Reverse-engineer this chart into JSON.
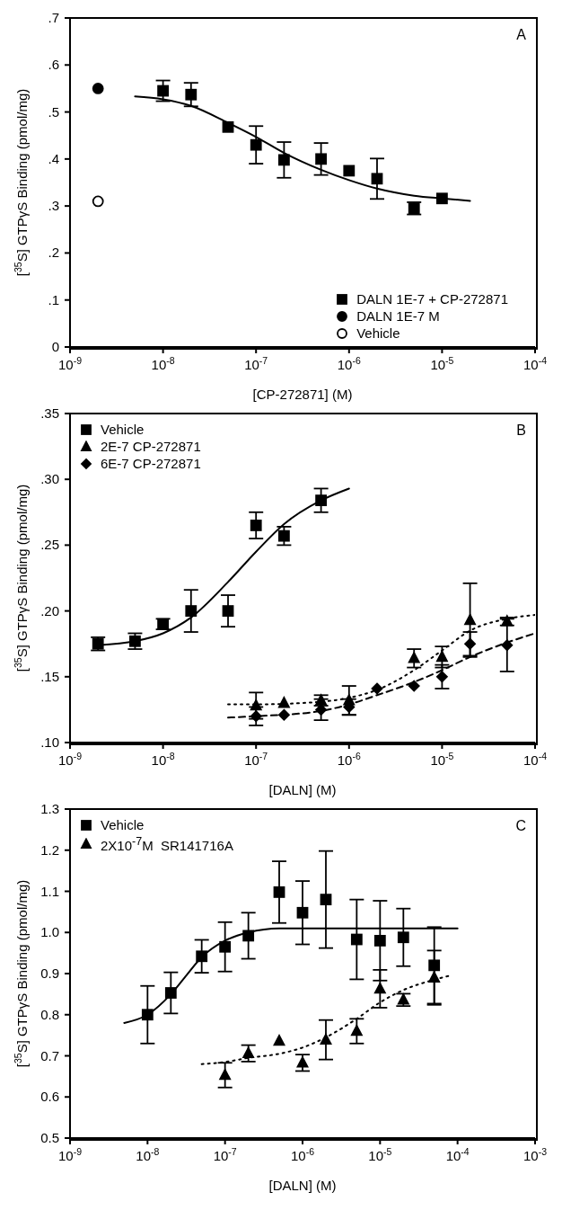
{
  "chart_data": [
    {
      "type": "scatter",
      "xlabel": "[CP-272871] (M)",
      "ylabel": "[$^{35}$S] GTPγS Binding (pmol/mg)",
      "log": "x",
      "legend": "bottom right",
      "annotations": [
        "A"
      ],
      "xlim": [
        1e-09,
        0.0001
      ],
      "xticks": [
        {
          "value": 1e-09,
          "label": "10$^{-9}$"
        },
        {
          "value": 1e-08,
          "label": "10$^{-8}$"
        },
        {
          "value": 1e-07,
          "label": "10$^{-7}$"
        },
        {
          "value": 1e-06,
          "label": "10$^{-6}$"
        },
        {
          "value": 1e-05,
          "label": "10$^{-5}$"
        },
        {
          "value": 0.0001,
          "label": "10$^{-4}$"
        }
      ],
      "ylim": [
        0,
        0.7
      ],
      "yticks": [
        0,
        {
          "value": 0.1,
          "label": ".1"
        },
        {
          "value": 0.2,
          "label": ".2"
        },
        {
          "value": 0.3,
          "label": ".3"
        },
        {
          "value": 0.4,
          "label": ".4"
        },
        {
          "value": 0.5,
          "label": ".5"
        },
        {
          "value": 0.6,
          "label": ".6"
        },
        {
          "value": 0.7,
          "label": ".7"
        }
      ],
      "series": [
        {
          "name": "DALN 1E-7 + CP-272871",
          "marker": "square",
          "color": "#000000",
          "x": [
            1e-08,
            2e-08,
            5e-08,
            1e-07,
            2e-07,
            5e-07,
            1e-06,
            2e-06,
            5e-06,
            1e-05
          ],
          "values": [
            0.545,
            0.537,
            0.468,
            0.43,
            0.398,
            0.4,
            0.375,
            0.358,
            0.295,
            0.316
          ],
          "errors": [
            0.022,
            0.025,
            null,
            0.04,
            0.038,
            0.034,
            null,
            0.043,
            0.013,
            null
          ]
        },
        {
          "name": "DALN 1E-7 M",
          "marker": "circle",
          "color": "#000000",
          "x": [
            2e-09
          ],
          "values": [
            0.55
          ]
        },
        {
          "name": "Vehicle",
          "marker": "circle",
          "color": "#ffffff",
          "x": [
            2e-09
          ],
          "values": [
            0.31
          ]
        },
        {
          "type": "line",
          "line_style": "solid",
          "color": "#000000",
          "x": [
            5e-09,
            1e-08,
            2e-08,
            5e-08,
            1e-07,
            2e-07,
            5e-07,
            1e-06,
            2e-06,
            5e-06,
            1e-05,
            2e-05
          ],
          "values": [
            0.533,
            0.527,
            0.513,
            0.477,
            0.447,
            0.413,
            0.377,
            0.355,
            0.337,
            0.322,
            0.316,
            0.311
          ]
        }
      ]
    },
    {
      "type": "scatter",
      "xlabel": "[DALN] (M)",
      "ylabel": "[$^{35}$S] GTPγS Binding (pmol/mg)",
      "log": "x",
      "legend": "top left",
      "annotations": [
        "B"
      ],
      "xlim": [
        1e-09,
        0.0001
      ],
      "xticks": [
        {
          "value": 1e-09,
          "label": "10$^{-9}$"
        },
        {
          "value": 1e-08,
          "label": "10$^{-8}$"
        },
        {
          "value": 1e-07,
          "label": "10$^{-7}$"
        },
        {
          "value": 1e-06,
          "label": "10$^{-6}$"
        },
        {
          "value": 1e-05,
          "label": "10$^{-5}$"
        },
        {
          "value": 0.0001,
          "label": "10$^{-4}$"
        }
      ],
      "ylim": [
        0.1,
        0.35
      ],
      "yticks": [
        {
          "value": 0.1,
          "label": ".10"
        },
        {
          "value": 0.15,
          "label": ".15"
        },
        {
          "value": 0.2,
          "label": ".20"
        },
        {
          "value": 0.25,
          "label": ".25"
        },
        {
          "value": 0.3,
          "label": ".30"
        },
        {
          "value": 0.35,
          "label": ".35"
        }
      ],
      "series": [
        {
          "name": "Vehicle",
          "marker": "square",
          "color": "#000000",
          "x": [
            2e-09,
            5e-09,
            1e-08,
            2e-08,
            5e-08,
            1e-07,
            2e-07,
            5e-07
          ],
          "values": [
            0.175,
            0.177,
            0.19,
            0.2,
            0.2,
            0.265,
            0.257,
            0.284
          ],
          "errors": [
            0.005,
            0.006,
            0.004,
            0.016,
            0.012,
            0.01,
            0.007,
            0.009
          ]
        },
        {
          "name": "2E-7 CP-272871",
          "marker": "triangle",
          "color": "#000000",
          "x": [
            1e-07,
            2e-07,
            5e-07,
            1e-06,
            5e-06,
            1e-05,
            2e-05,
            5e-05
          ],
          "values": [
            0.128,
            0.13,
            0.132,
            0.132,
            0.164,
            0.165,
            0.193,
            0.192
          ],
          "errors": [
            0.01,
            null,
            0.004,
            0.011,
            0.007,
            0.008,
            0.028,
            0.003
          ]
        },
        {
          "name": "6E-7 CP-272871",
          "marker": "diamond",
          "color": "#000000",
          "x": [
            1e-07,
            2e-07,
            5e-07,
            1e-06,
            2e-06,
            5e-06,
            1e-05,
            2e-05,
            5e-05
          ],
          "values": [
            0.12,
            0.121,
            0.125,
            0.127,
            0.141,
            0.143,
            0.15,
            0.175,
            0.174
          ],
          "errors": [
            0.007,
            null,
            0.008,
            0.006,
            null,
            null,
            0.009,
            0.009,
            0.02
          ]
        },
        {
          "type": "line",
          "line_style": "solid",
          "color": "#000000",
          "x": [
            2e-09,
            5e-09,
            1e-08,
            2e-08,
            5e-08,
            1e-07,
            2e-07,
            5e-07,
            1e-06
          ],
          "values": [
            0.174,
            0.177,
            0.183,
            0.195,
            0.222,
            0.245,
            0.266,
            0.284,
            0.293
          ]
        },
        {
          "type": "line",
          "line_style": "dotted",
          "color": "#000000",
          "x": [
            5e-08,
            1e-07,
            5e-07,
            1e-06,
            2e-06,
            5e-06,
            1e-05,
            2e-05,
            5e-05,
            0.0001
          ],
          "values": [
            0.129,
            0.129,
            0.131,
            0.134,
            0.14,
            0.155,
            0.17,
            0.185,
            0.194,
            0.197
          ]
        },
        {
          "type": "line",
          "line_style": "dashed",
          "color": "#000000",
          "x": [
            5e-08,
            1e-07,
            5e-07,
            1e-06,
            2e-06,
            5e-06,
            1e-05,
            2e-05,
            5e-05,
            0.0001
          ],
          "values": [
            0.119,
            0.12,
            0.124,
            0.129,
            0.136,
            0.146,
            0.155,
            0.165,
            0.176,
            0.183
          ]
        }
      ]
    },
    {
      "type": "scatter",
      "xlabel": "[DALN] (M)",
      "ylabel": "[$^{35}$S] GTPγS Binding (pmol/mg)",
      "log": "x",
      "legend": "top left",
      "annotations": [
        "C"
      ],
      "xlim": [
        1e-09,
        0.001
      ],
      "xticks": [
        {
          "value": 1e-09,
          "label": "10$^{-9}$"
        },
        {
          "value": 1e-08,
          "label": "10$^{-8}$"
        },
        {
          "value": 1e-07,
          "label": "10$^{-7}$"
        },
        {
          "value": 1e-06,
          "label": "10$^{-6}$"
        },
        {
          "value": 1e-05,
          "label": "10$^{-5}$"
        },
        {
          "value": 0.0001,
          "label": "10$^{-4}$"
        },
        {
          "value": 0.001,
          "label": "10$^{-3}$"
        }
      ],
      "ylim": [
        0.5,
        1.3
      ],
      "yticks": [
        0.5,
        0.6,
        0.7,
        0.8,
        0.9,
        {
          "value": 1,
          "label": "1.0"
        },
        1.1,
        1.2,
        1.3
      ],
      "series": [
        {
          "name": "Vehicle",
          "marker": "square",
          "color": "#000000",
          "x": [
            1e-08,
            2e-08,
            5e-08,
            1e-07,
            2e-07,
            5e-07,
            1e-06,
            2e-06,
            5e-06,
            1e-05,
            2e-05,
            5e-05
          ],
          "values": [
            0.8,
            0.853,
            0.942,
            0.965,
            0.992,
            1.098,
            1.048,
            1.08,
            0.983,
            0.98,
            0.988,
            0.92
          ],
          "errors": [
            0.07,
            0.05,
            0.04,
            0.06,
            0.056,
            0.075,
            0.077,
            0.118,
            0.097,
            0.097,
            0.07,
            0.093
          ]
        },
        {
          "name": "2X10$^{-7}$M  SR141716A",
          "marker": "triangle",
          "color": "#000000",
          "x": [
            1e-07,
            2e-07,
            5e-07,
            1e-06,
            2e-06,
            5e-06,
            1e-05,
            2e-05,
            5e-05
          ],
          "values": [
            0.653,
            0.706,
            0.736,
            0.683,
            0.739,
            0.76,
            0.863,
            0.836,
            0.89
          ],
          "errors": [
            0.03,
            0.02,
            null,
            0.02,
            0.048,
            0.03,
            0.046,
            0.015,
            0.066
          ]
        },
        {
          "type": "line",
          "line_style": "solid",
          "color": "#000000",
          "x": [
            5e-09,
            1e-08,
            2e-08,
            3e-08,
            5e-08,
            1e-07,
            2e-07,
            5e-07,
            1e-06,
            0.0001
          ],
          "values": [
            0.78,
            0.8,
            0.85,
            0.89,
            0.94,
            0.98,
            1.0,
            1.01,
            1.01,
            1.01
          ]
        },
        {
          "type": "line",
          "line_style": "dotted",
          "color": "#000000",
          "x": [
            5e-08,
            1e-07,
            2e-07,
            5e-07,
            1e-06,
            2e-06,
            5e-06,
            1e-05,
            2e-05,
            5e-05,
            8e-05
          ],
          "values": [
            0.68,
            0.685,
            0.695,
            0.705,
            0.72,
            0.745,
            0.79,
            0.83,
            0.86,
            0.885,
            0.895
          ]
        }
      ]
    }
  ]
}
